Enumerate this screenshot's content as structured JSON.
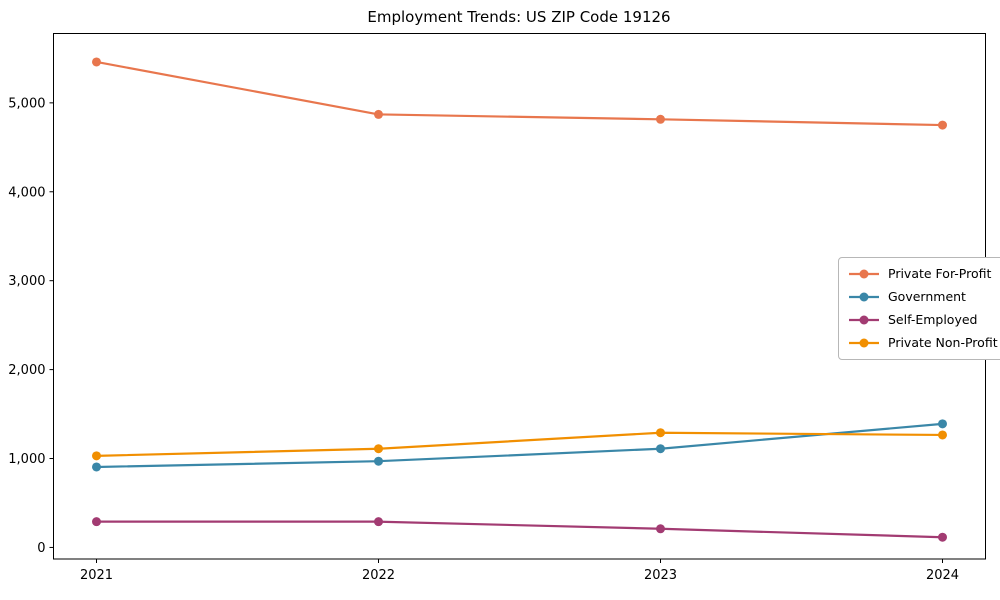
{
  "chart_data": {
    "type": "line",
    "title": "Employment Trends: US ZIP Code 19126",
    "categories": [
      "2021",
      "2022",
      "2023",
      "2024"
    ],
    "series": [
      {
        "name": "Private For-Profit",
        "color": "#E8764D",
        "values": [
          5460,
          4870,
          4815,
          4750
        ]
      },
      {
        "name": "Government",
        "color": "#3A87A8",
        "values": [
          905,
          970,
          1110,
          1390
        ]
      },
      {
        "name": "Self-Employed",
        "color": "#A23B72",
        "values": [
          290,
          290,
          210,
          115
        ]
      },
      {
        "name": "Private Non-Profit",
        "color": "#F18F01",
        "values": [
          1030,
          1110,
          1290,
          1265
        ]
      }
    ],
    "xlabel": "",
    "ylabel": "",
    "ylim": [
      -130,
      5780
    ],
    "yticks": {
      "values": [
        0,
        1000,
        2000,
        3000,
        4000,
        5000
      ],
      "labels": [
        "0",
        "1,000",
        "2,000",
        "3,000",
        "4,000",
        "5,000"
      ]
    },
    "grid": false,
    "legend_position": "center right",
    "marker": "circle",
    "axis_color": "#000000",
    "background_color": "#ffffff"
  }
}
